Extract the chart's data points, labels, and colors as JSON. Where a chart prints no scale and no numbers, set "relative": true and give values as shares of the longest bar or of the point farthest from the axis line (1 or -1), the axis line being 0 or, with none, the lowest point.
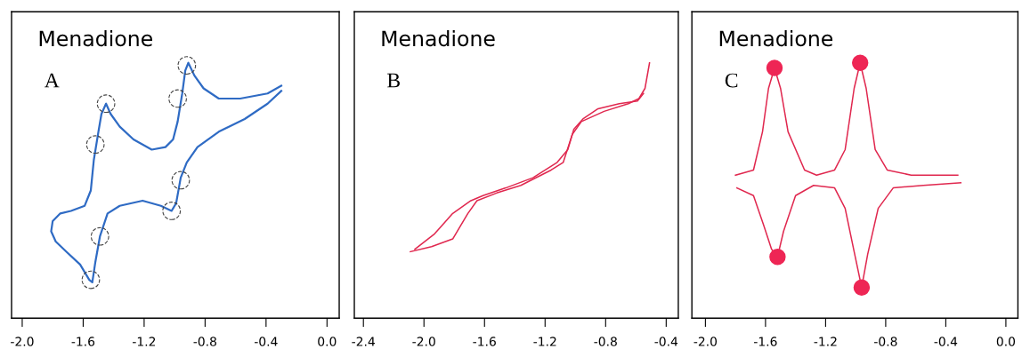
{
  "chart_data": [
    {
      "type": "line",
      "title": "Menadione",
      "annotations": [
        "A"
      ],
      "relative": true,
      "xlim": [
        -2.07,
        0.08
      ],
      "xticks": [
        {
          "value": -2.0,
          "label": "-2.0"
        },
        {
          "value": -1.6,
          "label": "-1.6"
        },
        {
          "value": -1.2,
          "label": "-1.2"
        },
        {
          "value": -0.8,
          "label": "-0.8"
        },
        {
          "value": -0.4,
          "label": "-0.4"
        },
        {
          "value": 0.0,
          "label": "0.0"
        }
      ],
      "tick_labels": "x",
      "grid": false,
      "legend": false,
      "series": [
        {
          "color": "#2f6bc4",
          "x": [
            -0.3,
            -0.39,
            -0.57,
            -0.71,
            -0.81,
            -0.87,
            -0.91,
            -0.93,
            -0.95,
            -0.98,
            -1.01,
            -1.06,
            -1.15,
            -1.27,
            -1.36,
            -1.42,
            -1.45,
            -1.48,
            -1.5,
            -1.53,
            -1.55,
            -1.59,
            -1.68,
            -1.75,
            -1.8,
            -1.81,
            -1.78,
            -1.71,
            -1.62,
            -1.56,
            -1.54,
            -1.52,
            -1.49,
            -1.44,
            -1.36,
            -1.21,
            -1.09,
            -1.02,
            -0.99,
            -0.96,
            -0.92,
            -0.85,
            -0.71,
            -0.54,
            -0.39,
            -0.3
          ],
          "values": [
            0.91,
            0.88,
            0.86,
            0.86,
            0.9,
            0.95,
            1.0,
            0.97,
            0.88,
            0.77,
            0.7,
            0.67,
            0.66,
            0.7,
            0.75,
            0.8,
            0.84,
            0.8,
            0.73,
            0.62,
            0.5,
            0.44,
            0.42,
            0.41,
            0.38,
            0.34,
            0.3,
            0.26,
            0.21,
            0.15,
            0.14,
            0.22,
            0.32,
            0.41,
            0.44,
            0.46,
            0.44,
            0.42,
            0.45,
            0.55,
            0.61,
            0.67,
            0.73,
            0.78,
            0.84,
            0.89
          ]
        },
        {
          "type": "scatter",
          "color": "#444444",
          "marker": "circle",
          "line_style": "dashed",
          "x": [
            -0.92,
            -0.98,
            -1.45,
            -1.52,
            -0.96,
            -1.02,
            -1.49,
            -1.55
          ],
          "values": [
            0.99,
            0.86,
            0.84,
            0.68,
            0.54,
            0.42,
            0.32,
            0.15
          ]
        }
      ]
    },
    {
      "type": "line",
      "title": "Menadione",
      "annotations": [
        "B"
      ],
      "relative": true,
      "xlim": [
        -2.46,
        -0.32
      ],
      "xticks": [
        {
          "value": -2.4,
          "label": "-2.4"
        },
        {
          "value": -2.0,
          "label": "-2.0"
        },
        {
          "value": -1.6,
          "label": "-1.6"
        },
        {
          "value": -1.2,
          "label": "-1.2"
        },
        {
          "value": -0.8,
          "label": "-0.8"
        },
        {
          "value": -0.4,
          "label": "-0.4"
        }
      ],
      "tick_labels": "x",
      "grid": false,
      "legend": false,
      "series": [
        {
          "color": "#e0284f",
          "x": [
            -2.09,
            -1.95,
            -1.81,
            -1.71,
            -1.65,
            -1.52,
            -1.36,
            -1.16,
            -1.08,
            -1.02,
            -0.96,
            -0.81,
            -0.65,
            -0.58,
            -0.54,
            -0.51
          ],
          "values": [
            0.26,
            0.28,
            0.31,
            0.41,
            0.46,
            0.49,
            0.52,
            0.58,
            0.61,
            0.72,
            0.77,
            0.81,
            0.84,
            0.86,
            0.9,
            1.0
          ]
        },
        {
          "color": "#e0284f",
          "x": [
            -0.55,
            -0.59,
            -0.71,
            -0.85,
            -0.95,
            -1.01,
            -1.05,
            -1.12,
            -1.28,
            -1.46,
            -1.61,
            -1.69,
            -1.81,
            -1.93,
            -2.06
          ],
          "values": [
            0.88,
            0.85,
            0.84,
            0.82,
            0.78,
            0.74,
            0.66,
            0.61,
            0.55,
            0.51,
            0.48,
            0.46,
            0.41,
            0.33,
            0.27
          ]
        }
      ]
    },
    {
      "type": "line",
      "title": "Menadione",
      "annotations": [
        "C"
      ],
      "relative": true,
      "xlim": [
        -2.09,
        0.08
      ],
      "xticks": [
        {
          "value": -2.0,
          "label": "-2.0"
        },
        {
          "value": -1.6,
          "label": "-1.6"
        },
        {
          "value": -1.2,
          "label": "-1.2"
        },
        {
          "value": -0.8,
          "label": "-0.8"
        },
        {
          "value": -0.4,
          "label": "-0.4"
        },
        {
          "value": 0.0,
          "label": "0.0"
        }
      ],
      "tick_labels": "x",
      "grid": false,
      "legend": false,
      "series": [
        {
          "color": "#e0284f",
          "x": [
            -1.8,
            -1.68,
            -1.62,
            -1.58,
            -1.54,
            -1.5,
            -1.45,
            -1.34,
            -1.26,
            -1.14,
            -1.07,
            -1.01,
            -0.97,
            -0.93,
            -0.87,
            -0.79,
            -0.63,
            -0.32
          ],
          "values": [
            0.56,
            0.58,
            0.73,
            0.9,
            0.98,
            0.9,
            0.73,
            0.58,
            0.56,
            0.58,
            0.66,
            0.9,
            1.0,
            0.9,
            0.66,
            0.58,
            0.56,
            0.56
          ]
        },
        {
          "color": "#e0284f",
          "x": [
            -1.79,
            -1.68,
            -1.61,
            -1.56,
            -1.52,
            -1.48,
            -1.4,
            -1.28,
            -1.14,
            -1.07,
            -1.01,
            -0.96,
            -0.92,
            -0.85,
            -0.75,
            -0.55,
            -0.3
          ],
          "values": [
            0.51,
            0.48,
            0.36,
            0.27,
            0.24,
            0.34,
            0.48,
            0.52,
            0.51,
            0.43,
            0.26,
            0.12,
            0.25,
            0.43,
            0.51,
            0.52,
            0.53
          ]
        },
        {
          "type": "scatter",
          "color": "#ee2655",
          "marker": "circle",
          "x": [
            -1.54,
            -0.97,
            -1.52,
            -0.96
          ],
          "values": [
            0.98,
            1.0,
            0.24,
            0.12
          ]
        }
      ]
    }
  ]
}
